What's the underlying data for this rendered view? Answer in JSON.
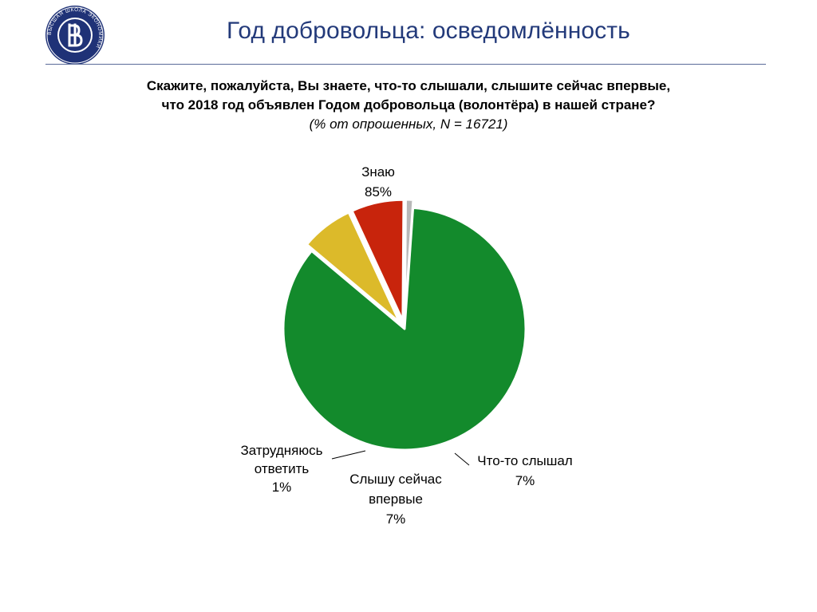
{
  "header": {
    "title": "Год добровольца: осведомлённость",
    "logo_text": "ВЫСШАЯ ШКОЛА ЭКОНОМИКИ",
    "logo_colors": {
      "ring": "#1f3277",
      "fill": "#1f3277",
      "text": "#ffffff"
    }
  },
  "question": {
    "line1": "Скажите, пожалуйста, Вы знаете, что-то слышали, слышите сейчас впервые,",
    "line2": "что 2018 год объявлен Годом добровольца (волонтёра) в нашей стране?",
    "subtitle": "(% от опрошенных, N = 16721)"
  },
  "chart_data": {
    "type": "pie",
    "slices": [
      {
        "label_lines": [
          "Знаю"
        ],
        "value": 85,
        "value_label": "85%",
        "color": "#138a2c",
        "exploded": false
      },
      {
        "label_lines": [
          "Что-то слышал"
        ],
        "value": 7,
        "value_label": "7%",
        "color": "#dcba2a",
        "exploded": true
      },
      {
        "label_lines": [
          "Слышу сейчас",
          "впервые"
        ],
        "value": 7,
        "value_label": "7%",
        "color": "#c8240c",
        "exploded": true
      },
      {
        "label_lines": [
          "Затрудняюсь",
          "ответить"
        ],
        "value": 1,
        "value_label": "1%",
        "color": "#b8b8b8",
        "exploded": true
      }
    ]
  }
}
